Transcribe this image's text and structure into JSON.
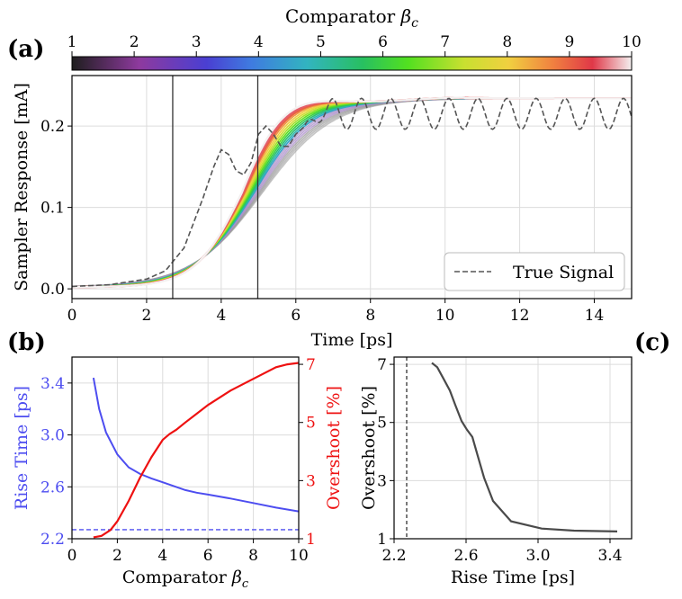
{
  "panel_labels": {
    "a": "(a)",
    "b": "(b)",
    "c": "(c)"
  },
  "colorbar": {
    "label": "Comparator βc",
    "label_main": "Comparator ",
    "label_symbol": "β",
    "label_sub": "c",
    "range": [
      1,
      10
    ],
    "ticks": [
      "1",
      "2",
      "3",
      "4",
      "5",
      "6",
      "7",
      "8",
      "9",
      "10"
    ]
  },
  "colors": {
    "blue": "#4d4df0",
    "red": "#ee1111",
    "gray_curve": "#4a4a4a",
    "grid": "#dcdcdc",
    "true_signal": "#555555"
  },
  "chart_data": [
    {
      "id": "a",
      "type": "line",
      "xlabel": "Time [ps]",
      "ylabel": "Sampler Response [mA]",
      "xlim": [
        0,
        15
      ],
      "ylim": [
        -0.012,
        0.262
      ],
      "xticks": [
        "0",
        "2",
        "4",
        "6",
        "8",
        "10",
        "12",
        "14"
      ],
      "yticks": [
        "0.0",
        "0.1",
        "0.2"
      ],
      "legend": {
        "label": "True Signal",
        "position": "bottom-right"
      },
      "vlines": [
        2.7,
        4.98
      ],
      "betas": [
        1,
        1.5,
        2,
        2.5,
        3,
        3.5,
        4,
        4.5,
        5,
        5.5,
        6,
        6.5,
        7,
        7.5,
        8,
        8.5,
        9,
        9.5,
        10
      ],
      "true_signal": {
        "name": "True Signal",
        "style": "dashed",
        "x": [
          0,
          1,
          2,
          2.5,
          3,
          3.5,
          3.8,
          4.0,
          4.2,
          4.4,
          4.6,
          4.8,
          5.0,
          5.2,
          5.4,
          5.6,
          5.8,
          6.0,
          6.5,
          7.0,
          8.0,
          9.0,
          10.0,
          11.0,
          12.0,
          13.0,
          14.0,
          15.0
        ],
        "y": [
          0.003,
          0.005,
          0.012,
          0.022,
          0.05,
          0.11,
          0.15,
          0.171,
          0.165,
          0.145,
          0.14,
          0.155,
          0.19,
          0.2,
          0.19,
          0.175,
          0.175,
          0.19,
          0.21,
          0.222,
          0.228,
          0.229,
          0.23,
          0.23,
          0.23,
          0.23,
          0.23,
          0.23
        ],
        "oscillation": {
          "start": 6.2,
          "period": 0.78,
          "amplitude": 0.019,
          "center": 0.215
        }
      },
      "response_curves": {
        "description": "family of sampler responses, one per comparator beta",
        "low_beta": {
          "final": 0.232,
          "midpoint_time": 5.1,
          "width": 0.95,
          "overshoot": 0
        },
        "high_beta": {
          "final": 0.232,
          "midpoint_time": 4.55,
          "width": 0.62,
          "overshoot": 0.07
        }
      }
    },
    {
      "id": "b",
      "type": "line",
      "xlabel": "Comparator βc",
      "ylabel_left": "Rise Time [ps]",
      "ylabel_right": "Overshoot [%]",
      "xlim": [
        0,
        10
      ],
      "ylim_left": [
        2.2,
        3.6
      ],
      "ylim_right": [
        1,
        7.25
      ],
      "xticks": [
        "0",
        "2",
        "4",
        "6",
        "8",
        "10"
      ],
      "yticks_left": [
        "2.2",
        "2.6",
        "3.0",
        "3.4"
      ],
      "yticks_right": [
        "1",
        "3",
        "5",
        "7"
      ],
      "series": [
        {
          "name": "Rise Time",
          "axis": "left",
          "color": "#4d4df0",
          "x": [
            0.95,
            1.2,
            1.5,
            2.0,
            2.5,
            3.0,
            3.5,
            4.0,
            4.5,
            5.0,
            5.5,
            6.0,
            7.0,
            8.0,
            9.0,
            10.0
          ],
          "y": [
            3.44,
            3.2,
            3.02,
            2.85,
            2.75,
            2.7,
            2.665,
            2.635,
            2.605,
            2.575,
            2.555,
            2.54,
            2.51,
            2.475,
            2.44,
            2.41
          ]
        },
        {
          "name": "Overshoot",
          "axis": "right",
          "color": "#ee1111",
          "x": [
            0.95,
            1.3,
            1.7,
            2.0,
            2.5,
            3.0,
            3.5,
            4.0,
            4.3,
            4.6,
            5.0,
            5.5,
            6.0,
            7.0,
            8.0,
            9.0,
            9.5,
            10.0
          ],
          "y": [
            1.05,
            1.1,
            1.3,
            1.6,
            2.3,
            3.1,
            3.8,
            4.4,
            4.6,
            4.75,
            5.0,
            5.3,
            5.6,
            6.1,
            6.5,
            6.9,
            7.0,
            7.05
          ]
        },
        {
          "name": "Reference Rise Time",
          "axis": "left",
          "color": "#4d4df0",
          "style": "dashed",
          "x": [
            0,
            10
          ],
          "y": [
            2.27,
            2.27
          ]
        }
      ]
    },
    {
      "id": "c",
      "type": "line",
      "xlabel": "Rise Time [ps]",
      "ylabel": "Overshoot [%]",
      "xlim": [
        2.2,
        3.52
      ],
      "ylim": [
        1,
        7.25
      ],
      "xticks": [
        "2.2",
        "2.6",
        "3.0",
        "3.4"
      ],
      "yticks": [
        "1",
        "3",
        "5",
        "7"
      ],
      "vline": {
        "x": 2.27,
        "style": "dashed"
      },
      "series": [
        {
          "name": "Overshoot vs Rise Time",
          "color": "#4a4a4a",
          "x": [
            2.41,
            2.44,
            2.475,
            2.51,
            2.54,
            2.575,
            2.605,
            2.635,
            2.665,
            2.7,
            2.75,
            2.85,
            3.02,
            3.2,
            3.44
          ],
          "y": [
            7.05,
            6.9,
            6.5,
            6.1,
            5.6,
            5.05,
            4.75,
            4.5,
            3.85,
            3.1,
            2.3,
            1.6,
            1.35,
            1.28,
            1.25
          ]
        }
      ]
    }
  ]
}
